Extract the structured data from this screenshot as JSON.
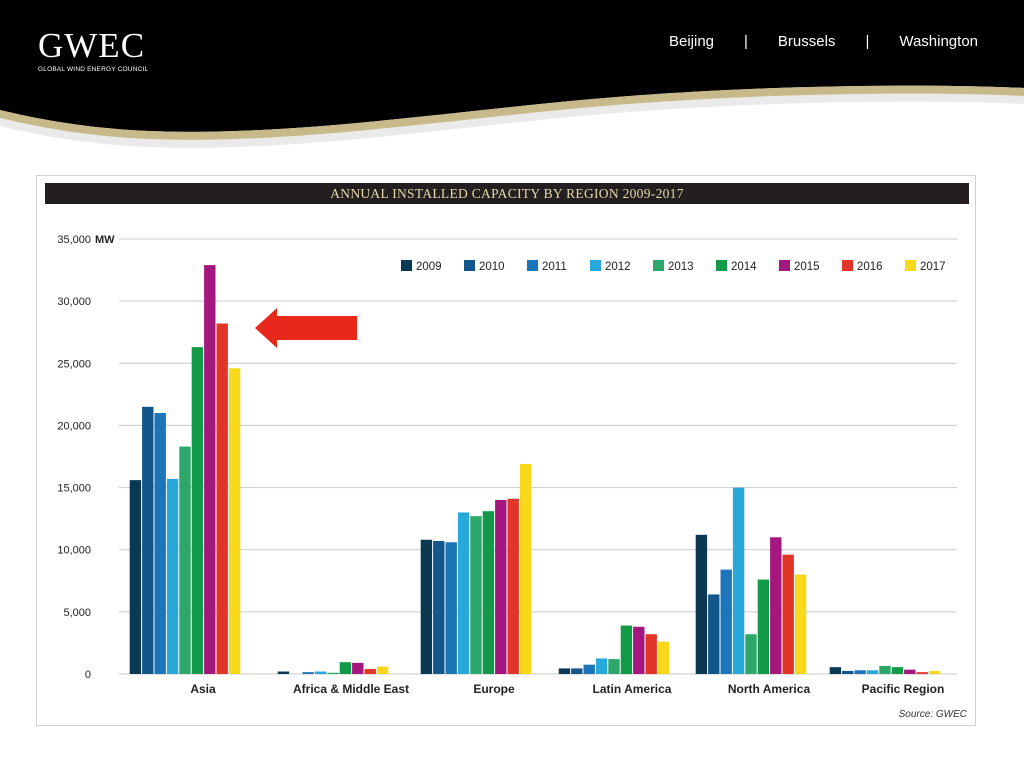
{
  "header": {
    "logo_text": "GWEC",
    "logo_subtitle": "GLOBAL WIND ENERGY COUNCIL",
    "nav_items": [
      "Beijing",
      "|",
      "Brussels",
      "|",
      "Washington"
    ]
  },
  "colors": {
    "header_bg": "#000000",
    "header_curve": "#c8b98a",
    "arrow": "#e8281b"
  },
  "chart_data": {
    "type": "bar",
    "title": "ANNUAL INSTALLED CAPACITY BY REGION 2009-2017",
    "ylabel": "MW",
    "ylim": [
      0,
      35000
    ],
    "yticks": [
      0,
      5000,
      10000,
      15000,
      20000,
      25000,
      30000,
      35000
    ],
    "ytick_labels": [
      "0",
      "5,000",
      "10,000",
      "15,000",
      "20,000",
      "25,000",
      "30,000",
      "35,000"
    ],
    "grid": true,
    "legend_position": "top-right",
    "categories": [
      "Asia",
      "Africa & Middle East",
      "Europe",
      "Latin America",
      "North America",
      "Pacific Region"
    ],
    "series": [
      {
        "name": "2009",
        "color": "#0b3954",
        "values": [
          15600,
          200,
          10800,
          450,
          11200,
          550
        ]
      },
      {
        "name": "2010",
        "color": "#12568a",
        "values": [
          21500,
          0,
          10700,
          450,
          6400,
          250
        ]
      },
      {
        "name": "2011",
        "color": "#1b75b8",
        "values": [
          21000,
          150,
          10600,
          750,
          8400,
          300
        ]
      },
      {
        "name": "2012",
        "color": "#27a9dc",
        "values": [
          15700,
          200,
          13000,
          1250,
          15000,
          300
        ]
      },
      {
        "name": "2013",
        "color": "#2ea86a",
        "values": [
          18300,
          100,
          12700,
          1200,
          3200,
          650
        ]
      },
      {
        "name": "2014",
        "color": "#129a48",
        "values": [
          26300,
          950,
          13100,
          3900,
          7600,
          550
        ]
      },
      {
        "name": "2015",
        "color": "#a3177e",
        "values": [
          32900,
          900,
          14000,
          3800,
          11000,
          350
        ]
      },
      {
        "name": "2016",
        "color": "#e03527",
        "values": [
          28200,
          400,
          14100,
          3200,
          9600,
          150
        ]
      },
      {
        "name": "2017",
        "color": "#f7d81a",
        "values": [
          24600,
          600,
          16900,
          2600,
          8000,
          250
        ]
      }
    ],
    "source": "Source: GWEC"
  }
}
